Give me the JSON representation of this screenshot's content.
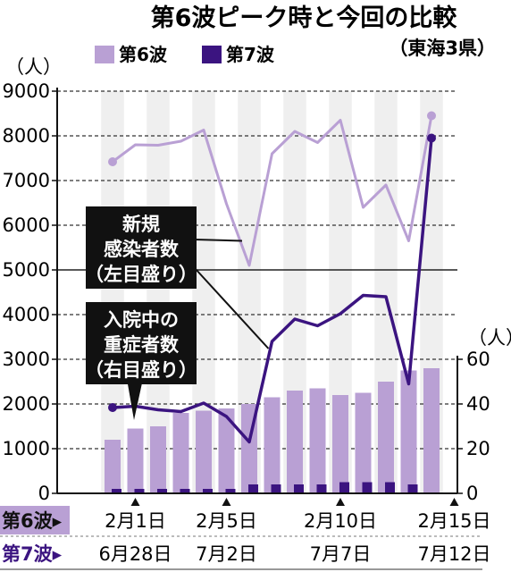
{
  "chart_data": {
    "type": "bar+line",
    "title": "第6波ピーク時と今回の比較",
    "subtitle": "（東海3県）",
    "left_axis": {
      "unit": "（人）",
      "ylim": [
        0,
        9000
      ],
      "ticks": [
        "9000",
        "8000",
        "7000",
        "6000",
        "5000",
        "4000",
        "3000",
        "2000",
        "1000",
        "0"
      ]
    },
    "right_axis": {
      "unit": "（人）",
      "ylim": [
        0,
        60
      ],
      "ticks": [
        "60",
        "40",
        "20",
        "0"
      ]
    },
    "legend": [
      {
        "name": "第6波",
        "color": "#b9a0d4"
      },
      {
        "name": "第7波",
        "color": "#3b1480"
      }
    ],
    "x_rows": [
      {
        "label": "第6波▸",
        "ticks": [
          "2月1日",
          "2月5日",
          "2月10日",
          "2月15日"
        ]
      },
      {
        "label": "第7波▸",
        "ticks": [
          "6月28日",
          "7月2日",
          "7月7日",
          "7月12日"
        ]
      }
    ],
    "x_tick_days": [
      1,
      5,
      10,
      15
    ],
    "days": [
      0,
      1,
      2,
      3,
      4,
      5,
      6,
      7,
      8,
      9,
      10,
      11,
      12,
      13,
      14,
      15
    ],
    "series": [
      {
        "name": "第6波",
        "kind": "line",
        "axis": "left",
        "values": [
          7420,
          7800,
          7790,
          7880,
          8130,
          6480,
          5100,
          7600,
          8100,
          7850,
          8350,
          6400,
          6900,
          5650,
          8450,
          null
        ]
      },
      {
        "name": "第7波",
        "kind": "line",
        "axis": "left",
        "values": [
          1920,
          1950,
          1870,
          1830,
          2020,
          1720,
          1150,
          3400,
          3900,
          3750,
          4020,
          4430,
          4400,
          2450,
          7950,
          null
        ]
      },
      {
        "name": "第6波",
        "kind": "bar",
        "axis": "right",
        "values": [
          24,
          29,
          30,
          36,
          37,
          38,
          40,
          43,
          46,
          47,
          44,
          45,
          50,
          55,
          56,
          null
        ]
      },
      {
        "name": "第7波",
        "kind": "bar",
        "axis": "right",
        "values": [
          2,
          2,
          2,
          2,
          2,
          2,
          4,
          4,
          4,
          4,
          5,
          5,
          5,
          4,
          null,
          null
        ]
      }
    ],
    "annotations": [
      {
        "lines": [
          "新規",
          "感染者数",
          "（左目盛り）"
        ]
      },
      {
        "lines": [
          "入院中の",
          "重症者数",
          "（右目盛り）"
        ]
      }
    ]
  }
}
